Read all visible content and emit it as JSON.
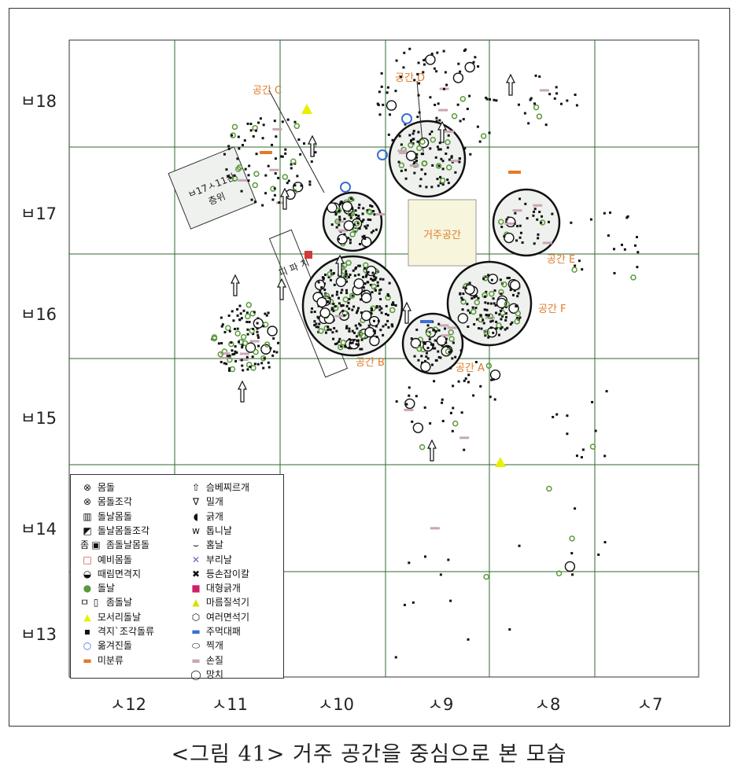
{
  "figure": {
    "caption": "<그림 41> 거주 공간을 중심으로 본 모습",
    "y_labels": [
      "ㅂ18",
      "ㅂ17",
      "ㅂ16",
      "ㅂ15",
      "ㅂ14",
      "ㅂ13"
    ],
    "x_labels": [
      "ㅅ12",
      "ㅅ11",
      "ㅅ10",
      "ㅅ9",
      "ㅅ8",
      "ㅅ7"
    ],
    "zones": {
      "a": "공간 A",
      "b": "공간 B",
      "c": "공간 C",
      "d": "공간 D",
      "e": "공간 E",
      "f": "공간 F",
      "dwelling": "거주공간",
      "layer_box": "ㅂ17ㅅ11칸\n층위",
      "trench": "피 파 치"
    },
    "colors": {
      "grid": "#2e6b2e",
      "zone_label": "#e07b2a",
      "dwelling_fill": "#f7f5dc",
      "circle_fill": "#eef1ee",
      "green_dot": "#5a9a3a",
      "blue_mark": "#3a6fd0",
      "red_mark": "#d03a3a",
      "yellow_mark": "#e8f000",
      "pink_mark": "#c9a6b8"
    }
  },
  "legend": {
    "col1": [
      {
        "icon": "cross-circle-icon",
        "label": "몸돌"
      },
      {
        "icon": "half-cross-circle-icon",
        "label": "몸돌조각"
      },
      {
        "icon": "ribbed-square-icon",
        "label": "돌날몸돌"
      },
      {
        "icon": "half-ribbed-square-icon",
        "label": "돌날몸돌조각"
      },
      {
        "icon": "double-square-icon",
        "label": "좀돌날몸돌",
        "prefix": "좀"
      },
      {
        "icon": "red-square-icon",
        "label": "예비몸돌"
      },
      {
        "icon": "shield-icon",
        "label": "때림면격지"
      },
      {
        "icon": "green-dot-icon",
        "label": "돌날"
      },
      {
        "icon": "bracket-square-icon",
        "label": "좀돌날",
        "prefix": "ㅁ"
      },
      {
        "icon": "yellow-dot-icon",
        "label": "모서리돌날"
      },
      {
        "icon": "black-dot-icon",
        "label": "격지`조각돌류"
      },
      {
        "icon": "blue-circle-icon",
        "label": "옮겨진돌"
      },
      {
        "icon": "orange-dash-icon",
        "label": "미분류"
      }
    ],
    "col2": [
      {
        "icon": "arrow-point-icon",
        "label": "슴베찌르개"
      },
      {
        "icon": "chevron-v-icon",
        "label": "밀개"
      },
      {
        "icon": "c-shape-icon",
        "label": "긁개"
      },
      {
        "icon": "w-shape-icon",
        "label": "톱니날"
      },
      {
        "icon": "cup-shape-icon",
        "label": "홈날"
      },
      {
        "icon": "x-purple-icon",
        "label": "부리날"
      },
      {
        "icon": "x-bold-icon",
        "label": "등손잡이칼"
      },
      {
        "icon": "magenta-square-icon",
        "label": "대형긁개"
      },
      {
        "icon": "yellow-triangle-icon",
        "label": "마름질석기"
      },
      {
        "icon": "hexagon-icon",
        "label": "여러면석기"
      },
      {
        "icon": "blue-dash-icon",
        "label": "주먹대패"
      },
      {
        "icon": "oval-icon",
        "label": "찍개"
      },
      {
        "icon": "pink-dash-icon",
        "label": "손질"
      },
      {
        "icon": "ring-icon",
        "label": "망치"
      }
    ]
  }
}
